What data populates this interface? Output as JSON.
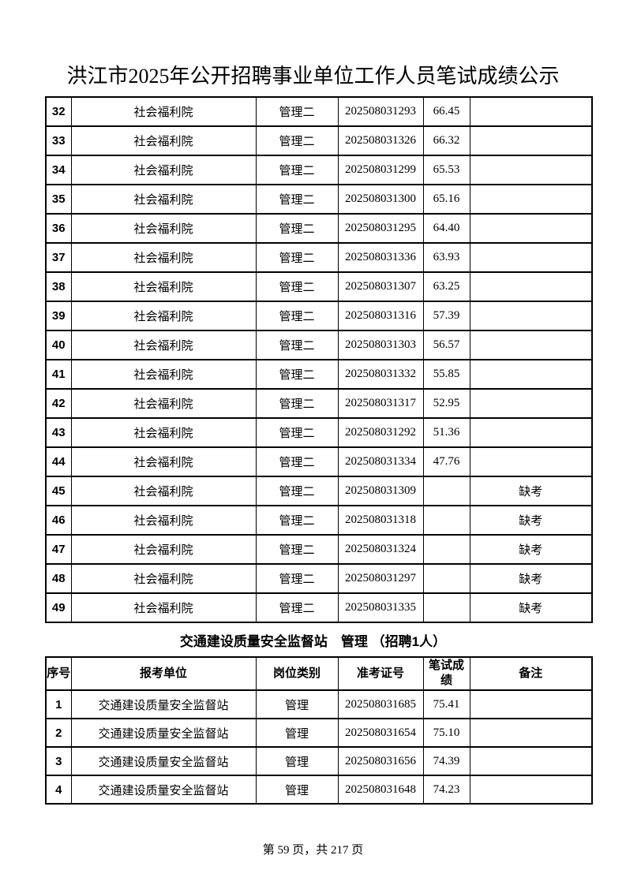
{
  "page": {
    "title": "洪江市2025年公开招聘事业单位工作人员笔试成绩公示",
    "footer": "第 59 页，共 217 页"
  },
  "welfare_table": {
    "rows": [
      {
        "no": "32",
        "unit": "社会福利院",
        "category": "管理二",
        "ticket": "202508031293",
        "score": "66.45",
        "note": ""
      },
      {
        "no": "33",
        "unit": "社会福利院",
        "category": "管理二",
        "ticket": "202508031326",
        "score": "66.32",
        "note": ""
      },
      {
        "no": "34",
        "unit": "社会福利院",
        "category": "管理二",
        "ticket": "202508031299",
        "score": "65.53",
        "note": ""
      },
      {
        "no": "35",
        "unit": "社会福利院",
        "category": "管理二",
        "ticket": "202508031300",
        "score": "65.16",
        "note": ""
      },
      {
        "no": "36",
        "unit": "社会福利院",
        "category": "管理二",
        "ticket": "202508031295",
        "score": "64.40",
        "note": ""
      },
      {
        "no": "37",
        "unit": "社会福利院",
        "category": "管理二",
        "ticket": "202508031336",
        "score": "63.93",
        "note": ""
      },
      {
        "no": "38",
        "unit": "社会福利院",
        "category": "管理二",
        "ticket": "202508031307",
        "score": "63.25",
        "note": ""
      },
      {
        "no": "39",
        "unit": "社会福利院",
        "category": "管理二",
        "ticket": "202508031316",
        "score": "57.39",
        "note": ""
      },
      {
        "no": "40",
        "unit": "社会福利院",
        "category": "管理二",
        "ticket": "202508031303",
        "score": "56.57",
        "note": ""
      },
      {
        "no": "41",
        "unit": "社会福利院",
        "category": "管理二",
        "ticket": "202508031332",
        "score": "55.85",
        "note": ""
      },
      {
        "no": "42",
        "unit": "社会福利院",
        "category": "管理二",
        "ticket": "202508031317",
        "score": "52.95",
        "note": ""
      },
      {
        "no": "43",
        "unit": "社会福利院",
        "category": "管理二",
        "ticket": "202508031292",
        "score": "51.36",
        "note": ""
      },
      {
        "no": "44",
        "unit": "社会福利院",
        "category": "管理二",
        "ticket": "202508031334",
        "score": "47.76",
        "note": ""
      },
      {
        "no": "45",
        "unit": "社会福利院",
        "category": "管理二",
        "ticket": "202508031309",
        "score": "",
        "note": "缺考"
      },
      {
        "no": "46",
        "unit": "社会福利院",
        "category": "管理二",
        "ticket": "202508031318",
        "score": "",
        "note": "缺考"
      },
      {
        "no": "47",
        "unit": "社会福利院",
        "category": "管理二",
        "ticket": "202508031324",
        "score": "",
        "note": "缺考"
      },
      {
        "no": "48",
        "unit": "社会福利院",
        "category": "管理二",
        "ticket": "202508031297",
        "score": "",
        "note": "缺考"
      },
      {
        "no": "49",
        "unit": "社会福利院",
        "category": "管理二",
        "ticket": "202508031335",
        "score": "",
        "note": "缺考"
      }
    ]
  },
  "transport_section": {
    "heading": "交通建设质量安全监督站　管理 （招聘1人）",
    "headers": [
      "序号",
      "报考单位",
      "岗位类别",
      "准考证号",
      "笔试成绩",
      "备注"
    ],
    "rows": [
      {
        "no": "1",
        "unit": "交通建设质量安全监督站",
        "category": "管理",
        "ticket": "202508031685",
        "score": "75.41",
        "note": ""
      },
      {
        "no": "2",
        "unit": "交通建设质量安全监督站",
        "category": "管理",
        "ticket": "202508031654",
        "score": "75.10",
        "note": ""
      },
      {
        "no": "3",
        "unit": "交通建设质量安全监督站",
        "category": "管理",
        "ticket": "202508031656",
        "score": "74.39",
        "note": ""
      },
      {
        "no": "4",
        "unit": "交通建设质量安全监督站",
        "category": "管理",
        "ticket": "202508031648",
        "score": "74.23",
        "note": ""
      }
    ]
  }
}
